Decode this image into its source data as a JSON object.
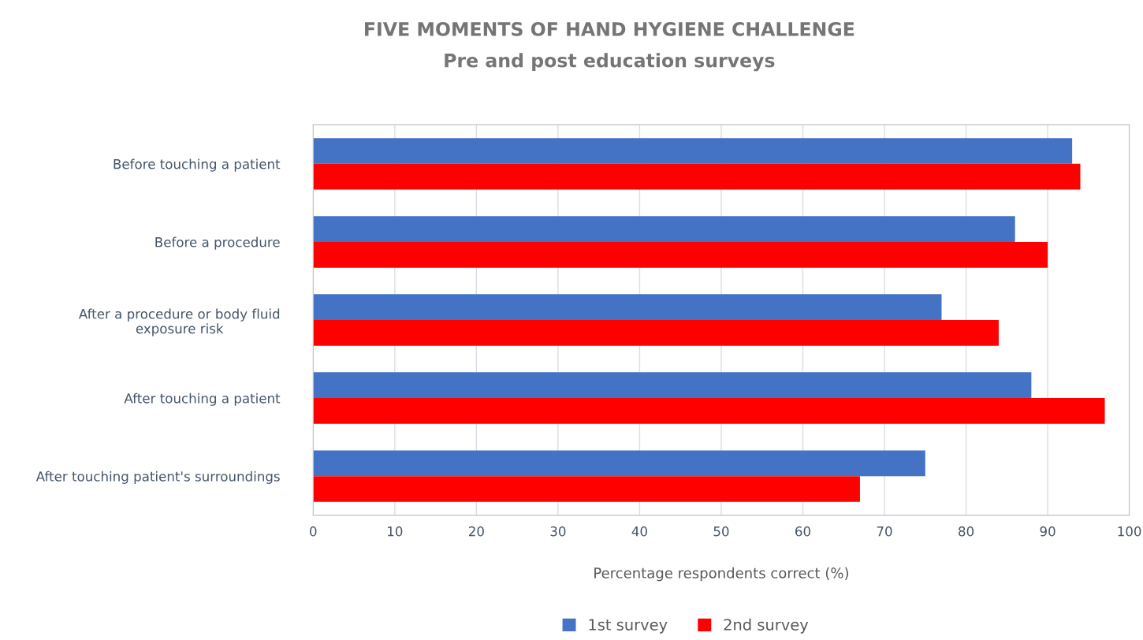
{
  "chart_data": {
    "type": "bar",
    "orientation": "horizontal",
    "title": "FIVE MOMENTS OF HAND HYGIENE CHALLENGE",
    "subtitle": "Pre and post education surveys",
    "xlabel": "Percentage respondents correct (%)",
    "categories": [
      "Before touching a patient",
      "Before a procedure",
      "After a procedure or body fluid exposure risk",
      "After touching a patient",
      "After touching patient's surroundings"
    ],
    "series": [
      {
        "name": "1st survey",
        "color": "#4472c4",
        "values": [
          93,
          86,
          77,
          88,
          75
        ]
      },
      {
        "name": "2nd survey",
        "color": "#ff0000",
        "values": [
          94,
          90,
          84,
          97,
          67
        ]
      }
    ],
    "xlim": [
      0,
      100
    ],
    "xticks": [
      0,
      10,
      20,
      30,
      40,
      50,
      60,
      70,
      80,
      90,
      100
    ],
    "grid": "x",
    "legend": "bottom"
  }
}
